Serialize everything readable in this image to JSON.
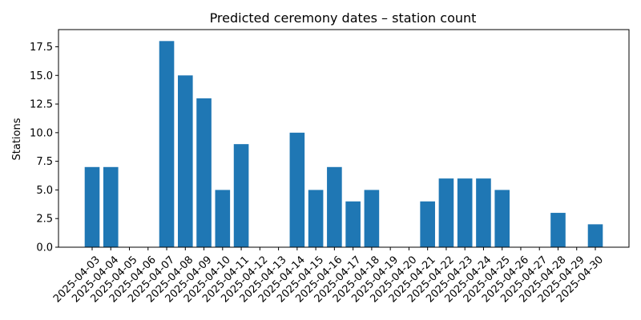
{
  "chart_data": {
    "type": "bar",
    "title": "Predicted ceremony dates – station count",
    "xlabel": "",
    "ylabel": "Stations",
    "categories": [
      "2025-04-03",
      "2025-04-04",
      "2025-04-05",
      "2025-04-06",
      "2025-04-07",
      "2025-04-08",
      "2025-04-09",
      "2025-04-10",
      "2025-04-11",
      "2025-04-12",
      "2025-04-13",
      "2025-04-14",
      "2025-04-15",
      "2025-04-16",
      "2025-04-17",
      "2025-04-18",
      "2025-04-19",
      "2025-04-20",
      "2025-04-21",
      "2025-04-22",
      "2025-04-23",
      "2025-04-24",
      "2025-04-25",
      "2025-04-26",
      "2025-04-27",
      "2025-04-28",
      "2025-04-29",
      "2025-04-30"
    ],
    "values": [
      7,
      7,
      0,
      0,
      18,
      15,
      13,
      5,
      9,
      0,
      0,
      10,
      5,
      7,
      4,
      5,
      0,
      0,
      4,
      6,
      6,
      6,
      5,
      0,
      0,
      3,
      0,
      2
    ],
    "ylim": [
      0,
      19
    ],
    "yticks": [
      0.0,
      2.5,
      5.0,
      7.5,
      10.0,
      12.5,
      15.0,
      17.5
    ],
    "ytick_labels": [
      "0.0",
      "2.5",
      "5.0",
      "7.5",
      "10.0",
      "12.5",
      "15.0",
      "17.5"
    ],
    "grid": false,
    "color": "#1f77b4"
  }
}
